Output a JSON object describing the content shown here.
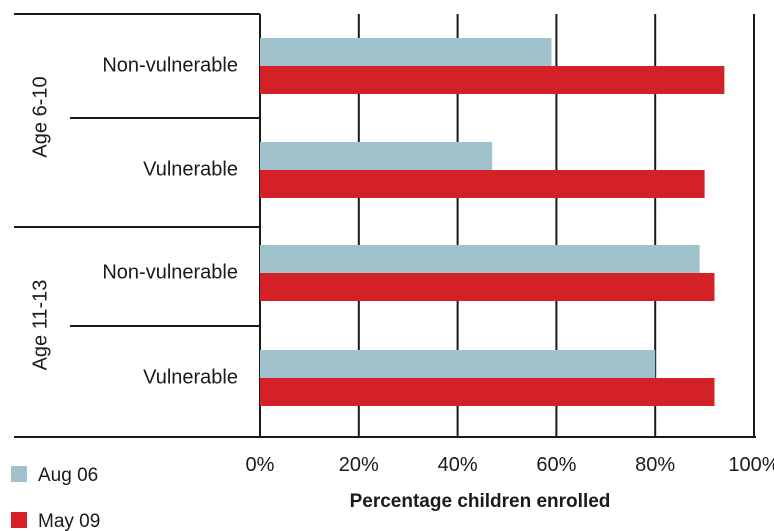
{
  "chart_data": {
    "type": "bar",
    "orientation": "horizontal",
    "groups": [
      {
        "label": "Age 6-10",
        "categories": [
          "Non-vulnerable",
          "Vulnerable"
        ]
      },
      {
        "label": "Age 11-13",
        "categories": [
          "Non-vulnerable",
          "Vulnerable"
        ]
      }
    ],
    "categories": [
      "Non-vulnerable",
      "Vulnerable",
      "Non-vulnerable",
      "Vulnerable"
    ],
    "series": [
      {
        "name": "Aug 06",
        "color": "#9fc2cc",
        "values": [
          59,
          47,
          89,
          80
        ]
      },
      {
        "name": "May 09",
        "color": "#d42027",
        "values": [
          94,
          90,
          92,
          92
        ]
      }
    ],
    "xlabel": "Percentage children enrolled",
    "xlim": [
      0,
      100
    ],
    "xticks": [
      "0%",
      "20%",
      "40%",
      "60%",
      "80%",
      "100%"
    ],
    "grid": "vertical",
    "legend": "bottom-left"
  }
}
